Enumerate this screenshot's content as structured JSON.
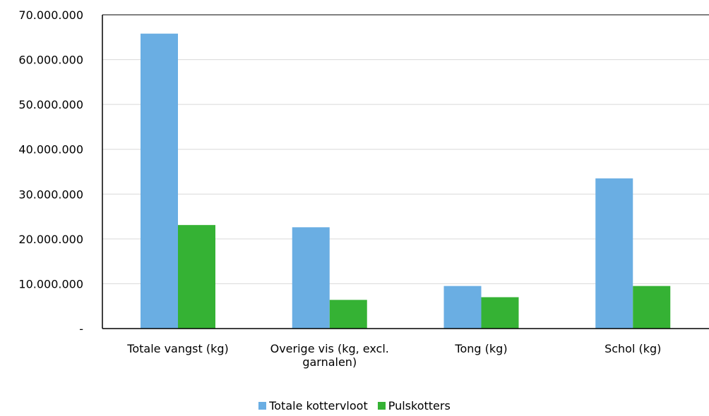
{
  "chart_data": {
    "type": "bar",
    "categories": [
      [
        "Totale vangst (kg)"
      ],
      [
        "Overige vis (kg, excl.",
        "garnalen)"
      ],
      [
        "Tong (kg)"
      ],
      [
        "Schol (kg)"
      ]
    ],
    "y_tick_labels": [
      "-",
      "10.000.000",
      "20.000.000",
      "30.000.000",
      "40.000.000",
      "50.000.000",
      "60.000.000",
      "70.000.000"
    ],
    "ylim": [
      0,
      70000000
    ],
    "y_tick_step": 10000000,
    "grid": true,
    "legend_position": "bottom",
    "series": [
      {
        "name": "Totale kottervloot",
        "color": "#6aaee3",
        "values": [
          65800000,
          22600000,
          9500000,
          33500000
        ]
      },
      {
        "name": "Pulskotters",
        "color": "#35b234",
        "values": [
          23100000,
          6400000,
          7000000,
          9500000
        ]
      }
    ]
  }
}
